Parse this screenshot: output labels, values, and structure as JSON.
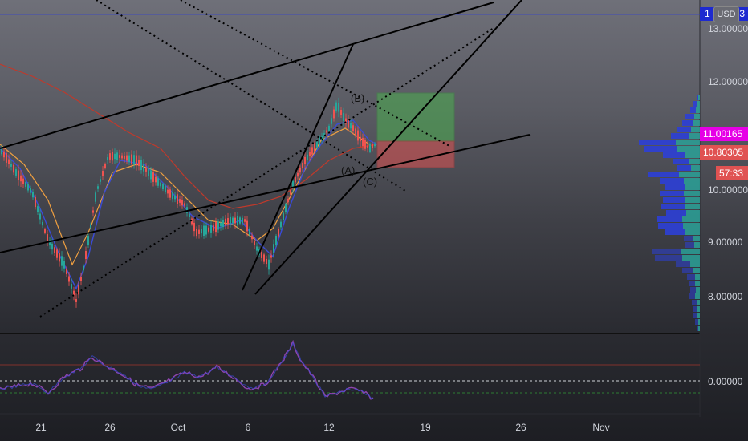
{
  "currency_button": "USD",
  "price_axis": {
    "ticks": [
      "13.00000",
      "12.00000",
      "10.00000",
      "9.00000",
      "8.00000",
      "0.00000"
    ],
    "top_label": "13",
    "top_label_prefix": "1"
  },
  "badges": {
    "magenta_price": "11.00165",
    "current_price": "10.80305",
    "countdown": "57:33"
  },
  "time_axis": [
    "21",
    "26",
    "Oct",
    "6",
    "12",
    "19",
    "26",
    "Nov"
  ],
  "wave_labels": {
    "b": "(B)",
    "a": "(A)",
    "c": "(C)"
  },
  "colors": {
    "ema_blue": "#3a4bd8",
    "ema_red": "#c0392b",
    "ema_orange": "#f0a040",
    "candle_up": "#26a69a",
    "candle_down": "#ef5350",
    "target_zone": "#4caf50",
    "stop_zone": "#e05252",
    "volume_blue": "#2c3fd6",
    "volume_teal": "#2aa198",
    "oscillator": "#8e44ad",
    "magenta_badge": "#e600e6"
  }
}
